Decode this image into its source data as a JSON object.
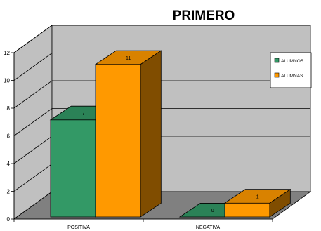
{
  "chart_data": {
    "type": "bar",
    "title": "PRIMERO",
    "categories": [
      "POSITIVA",
      "NEGATIVA"
    ],
    "series": [
      {
        "name": "ALUMNOS",
        "values": [
          7,
          0
        ],
        "color": "#339966"
      },
      {
        "name": "ALUMNAS",
        "values": [
          11,
          1
        ],
        "color": "#FF9900"
      }
    ],
    "ylim": [
      0,
      12
    ],
    "yticks": [
      0,
      2,
      4,
      6,
      8,
      10,
      12
    ],
    "grid": true,
    "legend": "right",
    "wall_color": "#C0C0C0",
    "floor_color": "#808080"
  }
}
